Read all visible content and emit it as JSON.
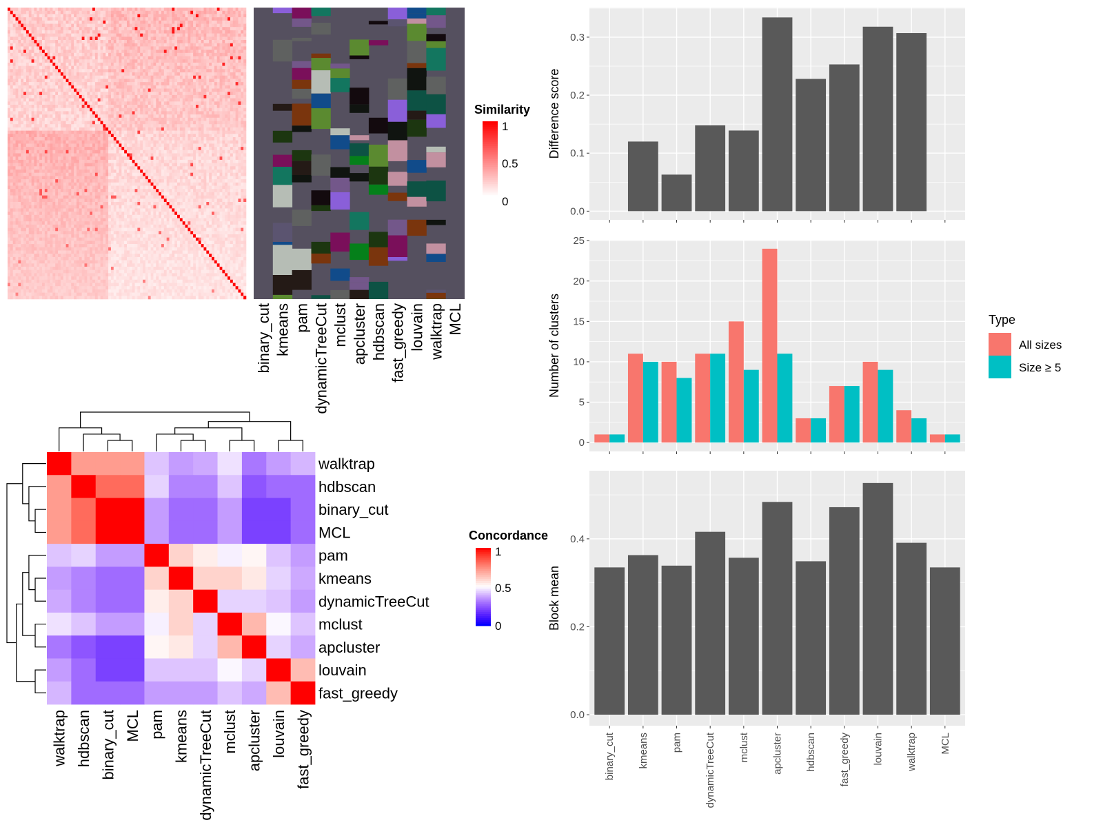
{
  "colors": {
    "bar_fill": "#595959",
    "panel_bg": "#ebebeb",
    "grid": "#ffffff",
    "all_sizes": "#F8766D",
    "size_ge5": "#00BFC4",
    "heat_high": "#ff0000",
    "heat_mid": "#ffffff",
    "heat_low": "#0000ff",
    "class_bg": "#55505f"
  },
  "similarity_heatmap": {
    "legend_title": "Similarity",
    "legend_ticks": [
      "1",
      "0.5",
      "0"
    ]
  },
  "class_matrix": {
    "columns": [
      "binary_cut",
      "kmeans",
      "pam",
      "dynamicTreeCut",
      "mclust",
      "apcluster",
      "hdbscan",
      "fast_greedy",
      "louvain",
      "walktrap",
      "MCL"
    ]
  },
  "concordance_heatmap": {
    "legend_title": "Concordance",
    "legend_ticks": [
      "1",
      "0.5",
      "0"
    ],
    "labels": [
      "walktrap",
      "hdbscan",
      "binary_cut",
      "MCL",
      "pam",
      "kmeans",
      "dynamicTreeCut",
      "mclust",
      "apcluster",
      "louvain",
      "fast_greedy"
    ],
    "values": [
      [
        1.0,
        0.72,
        0.72,
        0.72,
        0.42,
        0.36,
        0.38,
        0.46,
        0.3,
        0.36,
        0.4
      ],
      [
        0.72,
        1.0,
        0.82,
        0.82,
        0.44,
        0.32,
        0.32,
        0.42,
        0.24,
        0.28,
        0.28
      ],
      [
        0.72,
        0.82,
        1.0,
        1.0,
        0.36,
        0.28,
        0.28,
        0.36,
        0.2,
        0.2,
        0.28
      ],
      [
        0.72,
        0.82,
        1.0,
        1.0,
        0.36,
        0.28,
        0.28,
        0.36,
        0.2,
        0.2,
        0.28
      ],
      [
        0.42,
        0.44,
        0.36,
        0.36,
        1.0,
        0.6,
        0.54,
        0.48,
        0.52,
        0.42,
        0.36
      ],
      [
        0.36,
        0.32,
        0.28,
        0.28,
        0.6,
        1.0,
        0.6,
        0.6,
        0.55,
        0.44,
        0.38
      ],
      [
        0.38,
        0.32,
        0.28,
        0.28,
        0.54,
        0.6,
        1.0,
        0.44,
        0.44,
        0.42,
        0.36
      ],
      [
        0.46,
        0.42,
        0.36,
        0.36,
        0.48,
        0.6,
        0.44,
        1.0,
        0.66,
        0.49,
        0.42
      ],
      [
        0.3,
        0.24,
        0.2,
        0.2,
        0.52,
        0.55,
        0.44,
        0.66,
        1.0,
        0.44,
        0.38
      ],
      [
        0.36,
        0.28,
        0.2,
        0.2,
        0.42,
        0.42,
        0.42,
        0.49,
        0.44,
        1.0,
        0.65
      ],
      [
        0.4,
        0.28,
        0.28,
        0.28,
        0.36,
        0.36,
        0.36,
        0.42,
        0.38,
        0.65,
        1.0
      ]
    ]
  },
  "chart_data": [
    {
      "type": "bar",
      "ylabel": "Difference score",
      "categories": [
        "binary_cut",
        "kmeans",
        "pam",
        "dynamicTreeCut",
        "mclust",
        "apcluster",
        "hdbscan",
        "fast_greedy",
        "louvain",
        "walktrap",
        "MCL"
      ],
      "values": [
        0,
        0.12,
        0.063,
        0.148,
        0.139,
        0.334,
        0.228,
        0.253,
        0.318,
        0.307,
        0
      ],
      "ylim": [
        -0.015,
        0.351
      ],
      "yticks": [
        "0.0",
        "0.1",
        "0.2",
        "0.3"
      ],
      "grid": true
    },
    {
      "type": "bar",
      "ylabel": "Number of clusters",
      "categories": [
        "binary_cut",
        "kmeans",
        "pam",
        "dynamicTreeCut",
        "mclust",
        "apcluster",
        "hdbscan",
        "fast_greedy",
        "louvain",
        "walktrap",
        "MCL"
      ],
      "series": [
        {
          "name": "All sizes",
          "values": [
            1,
            11,
            10,
            11,
            15,
            24,
            3,
            7,
            10,
            4,
            1
          ]
        },
        {
          "name": "Size ≥ 5",
          "values": [
            1,
            10,
            8,
            11,
            9,
            11,
            3,
            7,
            9,
            3,
            1
          ]
        }
      ],
      "legend_title": "Type",
      "legend_position": "right",
      "ylim": [
        -1.1,
        25.1
      ],
      "yticks": [
        "0",
        "5",
        "10",
        "15",
        "20",
        "25"
      ],
      "grid": true
    },
    {
      "type": "bar",
      "ylabel": "Block mean",
      "categories": [
        "binary_cut",
        "kmeans",
        "pam",
        "dynamicTreeCut",
        "mclust",
        "apcluster",
        "hdbscan",
        "fast_greedy",
        "louvain",
        "walktrap",
        "MCL"
      ],
      "values": [
        0.335,
        0.363,
        0.339,
        0.416,
        0.357,
        0.484,
        0.349,
        0.472,
        0.527,
        0.391,
        0.335
      ],
      "ylim": [
        -0.025,
        0.555
      ],
      "yticks": [
        "0.0",
        "0.2",
        "0.4"
      ],
      "grid": true
    }
  ]
}
